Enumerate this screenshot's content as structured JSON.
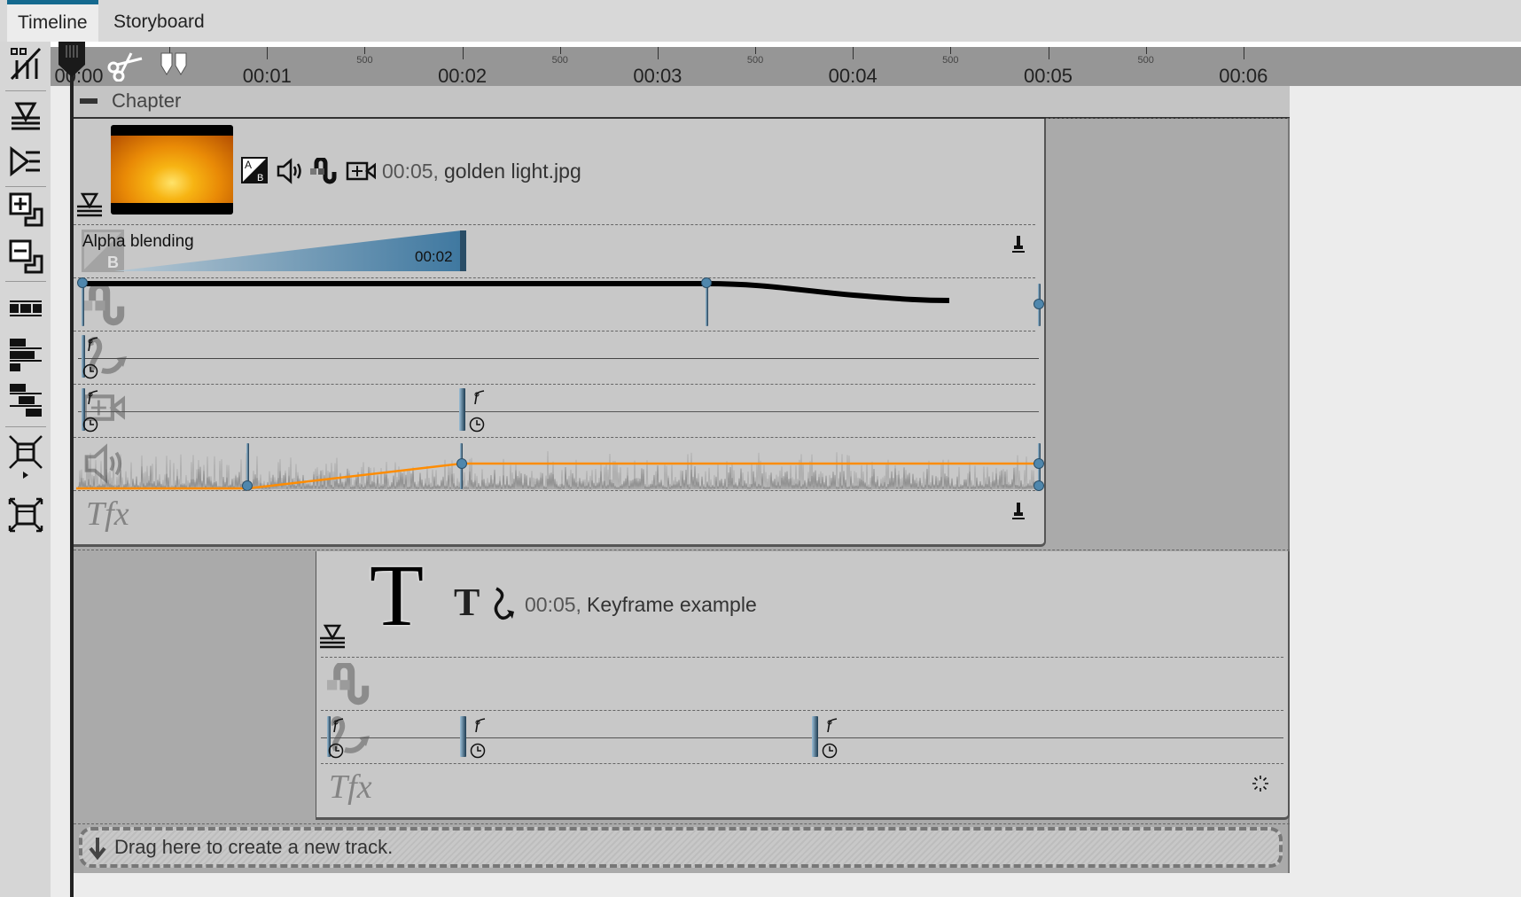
{
  "tabs": [
    {
      "label": "Timeline",
      "active": true
    },
    {
      "label": "Storyboard",
      "active": false
    }
  ],
  "ruler": {
    "major": [
      "00:00",
      "00:01",
      "00:02",
      "00:03",
      "00:04",
      "00:05",
      "00:06"
    ],
    "minor": "500"
  },
  "chapter": {
    "label": "Chapter"
  },
  "track1": {
    "duration": "00:05,",
    "name": "golden light.jpg",
    "alpha": {
      "label": "Alpha blending",
      "time": "00:02"
    },
    "icons": [
      "alpha-blend-icon",
      "speaker-icon",
      "motion-curve-icon",
      "camera-pan-icon"
    ]
  },
  "track2": {
    "duration": "00:05,",
    "name": "Keyframe example"
  },
  "drop": {
    "label": "Drag here to create a new track."
  },
  "colors": {
    "accent": "#14698f",
    "keyframe": "#4f87ad",
    "volume_curve": "#ff8c00",
    "ruler": "#969696"
  }
}
